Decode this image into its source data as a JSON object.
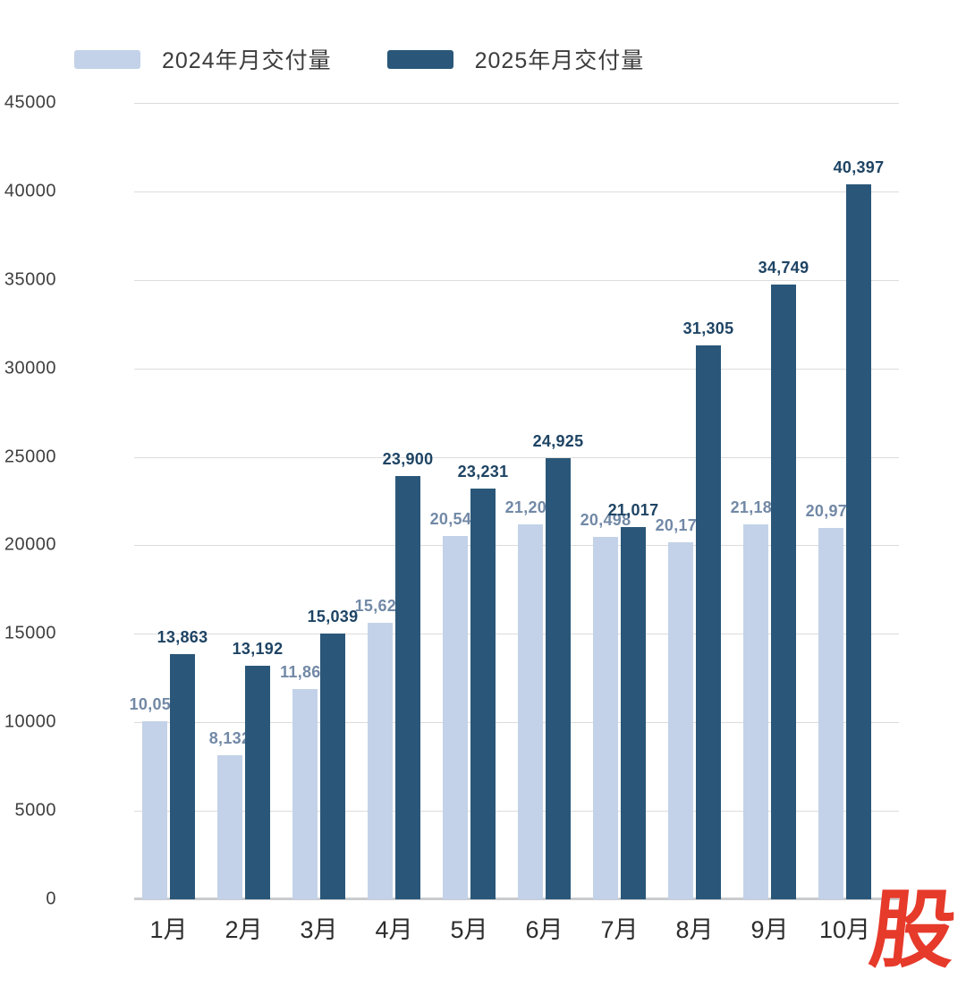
{
  "chart_data": {
    "type": "bar",
    "title": "",
    "xlabel": "",
    "ylabel": "",
    "categories": [
      "1月",
      "2月",
      "3月",
      "4月",
      "5月",
      "6月",
      "7月",
      "8月",
      "9月",
      "10月"
    ],
    "series": [
      {
        "name": "2024年月交付量",
        "color": "#c3d2e8",
        "label_color": "#7289a6",
        "values": [
          10055,
          8132,
          11866,
          15620,
          20544,
          21209,
          20498,
          20176,
          21181,
          20976
        ],
        "labels": [
          "10,055",
          "8,132",
          "11,866",
          "15,620",
          "20,544",
          "21,209",
          "20,498",
          "20,176",
          "21,181",
          "20,976"
        ]
      },
      {
        "name": "2025年月交付量",
        "color": "#2a5779",
        "label_color": "#1e4464",
        "values": [
          13863,
          13192,
          15039,
          23900,
          23231,
          24925,
          21017,
          31305,
          34749,
          40397
        ],
        "labels": [
          "13,863",
          "13,192",
          "15,039",
          "23,900",
          "23,231",
          "24,925",
          "21,017",
          "31,305",
          "34,749",
          "40,397"
        ]
      }
    ],
    "y_axis": {
      "min": 0,
      "max": 45000,
      "step": 5000,
      "tick_labels": [
        "0",
        "5000",
        "10000",
        "15000",
        "20000",
        "25000",
        "30000",
        "35000",
        "40000",
        "45000"
      ]
    },
    "grid": true,
    "legend_position": "top-left"
  },
  "watermark": {
    "text": "股",
    "color": "#e63a2b"
  }
}
